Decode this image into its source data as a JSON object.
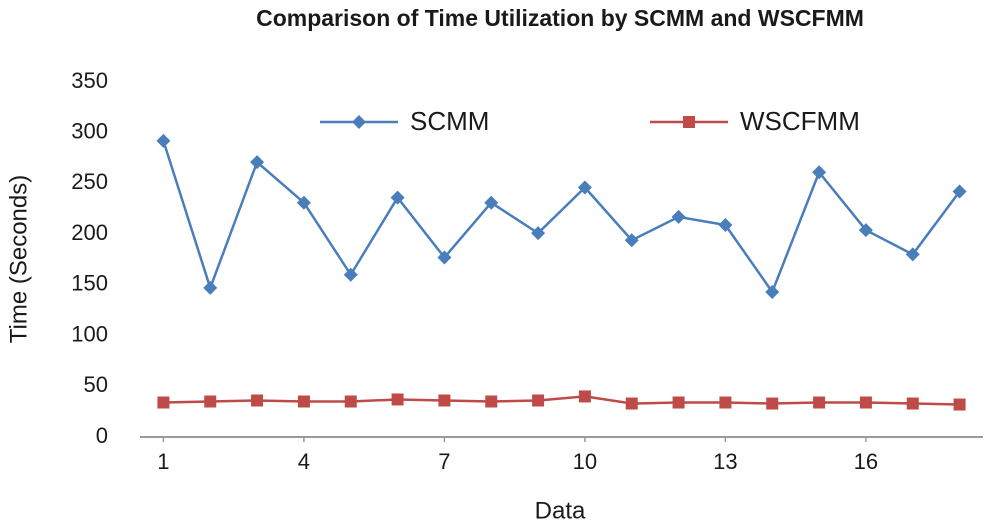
{
  "chart_data": {
    "type": "line",
    "title": "Comparison of Time Utilization by SCMM and WSCFMM",
    "x_label": "Data",
    "y_label": "Time (Seconds)",
    "x": [
      1,
      2,
      3,
      4,
      5,
      6,
      7,
      8,
      9,
      10,
      11,
      12,
      13,
      14,
      15,
      16,
      17,
      18
    ],
    "series": [
      {
        "name": "SCMM",
        "color": "#4a7ebb",
        "marker": "diamond",
        "values": [
          292,
          147,
          271,
          231,
          160,
          236,
          177,
          231,
          201,
          246,
          194,
          217,
          209,
          143,
          261,
          204,
          180,
          242
        ]
      },
      {
        "name": "WSCFMM",
        "color": "#be4b48",
        "marker": "square",
        "values": [
          34,
          35,
          36,
          35,
          35,
          37,
          36,
          35,
          36,
          40,
          33,
          34,
          34,
          33,
          34,
          34,
          33,
          32
        ]
      }
    ],
    "xlim": [
      0.5,
      18.5
    ],
    "xticks": [
      1,
      4,
      7,
      10,
      13,
      16
    ],
    "ylim": [
      0,
      350
    ],
    "yticks": [
      0,
      50,
      100,
      150,
      200,
      250,
      300,
      350
    ],
    "grid": false,
    "legend": "top"
  }
}
